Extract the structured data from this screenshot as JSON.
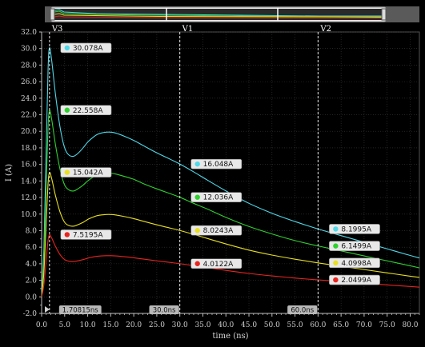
{
  "colors": {
    "background": "#000000",
    "grid": "#3a3a3a",
    "axis": "#bfbfbf",
    "cursor_line": "#e8e8e8",
    "label_box": "#e8e8e8",
    "cursor_box": "#b8b8b8"
  },
  "overview_bar": {
    "handle_left_icon": "slider-handle-icon",
    "handle_right_icon": "slider-handle-icon"
  },
  "chart_data": {
    "type": "line",
    "xlabel": "time (ns)",
    "ylabel": "I (A)",
    "xlim": [
      0,
      82
    ],
    "ylim": [
      -2.0,
      32.0
    ],
    "x_ticks": [
      "0.0",
      "5.0",
      "10.0",
      "15.0",
      "20.0",
      "25.0",
      "30.0",
      "35.0",
      "40.0",
      "45.0",
      "50.0",
      "55.0",
      "60.0",
      "65.0",
      "70.0",
      "75.0",
      "80.0"
    ],
    "y_ticks": [
      "-2.0",
      "0.0",
      "2.0",
      "4.0",
      "6.0",
      "8.0",
      "10.0",
      "12.0",
      "14.0",
      "16.0",
      "18.0",
      "20.0",
      "22.0",
      "24.0",
      "26.0",
      "28.0",
      "30.0",
      "32.0"
    ],
    "grid": true,
    "series": [
      {
        "color": "#4fd8e8",
        "values_at_markers": [
          30.078,
          16.048,
          8.1995
        ],
        "x": [
          0,
          0.5,
          1.0,
          1.4,
          1.70815,
          2.2,
          3.0,
          4.0,
          5.0,
          6.0,
          7.0,
          8.0,
          9.0,
          10,
          11,
          12,
          13,
          14,
          15,
          16,
          18,
          20,
          22,
          25,
          28,
          30,
          33,
          36,
          40,
          45,
          50,
          55,
          60,
          65,
          70,
          75,
          80,
          82
        ],
        "values": [
          0,
          6,
          18,
          27.5,
          30.078,
          28.5,
          24.5,
          20.5,
          18.0,
          17.1,
          17.0,
          17.4,
          18.0,
          18.7,
          19.2,
          19.6,
          19.8,
          19.9,
          19.9,
          19.8,
          19.4,
          18.9,
          18.3,
          17.4,
          16.6,
          16.048,
          15.1,
          14.1,
          12.8,
          11.3,
          10.1,
          9.1,
          8.1995,
          7.4,
          6.6,
          5.8,
          5.0,
          4.7
        ]
      },
      {
        "color": "#2fd12f",
        "values_at_markers": [
          22.558,
          12.036,
          6.1499
        ],
        "x": [
          0,
          0.5,
          1.0,
          1.4,
          1.70815,
          2.2,
          3.0,
          4.0,
          5.0,
          6.0,
          7.0,
          8.0,
          9.0,
          10,
          11,
          12,
          13,
          14,
          15,
          16,
          18,
          20,
          22,
          25,
          28,
          30,
          33,
          36,
          40,
          45,
          50,
          55,
          60,
          65,
          70,
          75,
          80,
          82
        ],
        "values": [
          0,
          4.5,
          13.5,
          20.6,
          22.558,
          21.4,
          18.4,
          15.4,
          13.5,
          12.9,
          12.8,
          13.1,
          13.5,
          14.0,
          14.4,
          14.7,
          14.85,
          14.93,
          14.93,
          14.85,
          14.55,
          14.2,
          13.7,
          13.05,
          12.45,
          12.036,
          11.3,
          10.6,
          9.6,
          8.5,
          7.6,
          6.8,
          6.1499,
          5.55,
          4.95,
          4.35,
          3.75,
          3.5
        ]
      },
      {
        "color": "#e8e020",
        "values_at_markers": [
          15.042,
          8.0243,
          4.0998
        ],
        "x": [
          0,
          0.5,
          1.0,
          1.4,
          1.70815,
          2.2,
          3.0,
          4.0,
          5.0,
          6.0,
          7.0,
          8.0,
          9.0,
          10,
          11,
          12,
          13,
          14,
          15,
          16,
          18,
          20,
          22,
          25,
          28,
          30,
          33,
          36,
          40,
          45,
          50,
          55,
          60,
          65,
          70,
          75,
          80,
          82
        ],
        "values": [
          0,
          3,
          9,
          13.7,
          15.042,
          14.25,
          12.25,
          10.25,
          9.0,
          8.6,
          8.55,
          8.75,
          9.0,
          9.35,
          9.6,
          9.8,
          9.9,
          9.95,
          9.95,
          9.9,
          9.7,
          9.45,
          9.15,
          8.7,
          8.3,
          8.0243,
          7.55,
          7.05,
          6.4,
          5.65,
          5.05,
          4.55,
          4.0998,
          3.7,
          3.3,
          2.9,
          2.5,
          2.35
        ]
      },
      {
        "color": "#e8241e",
        "values_at_markers": [
          7.5195,
          4.0122,
          2.0499
        ],
        "x": [
          0,
          0.5,
          1.0,
          1.4,
          1.70815,
          2.2,
          3.0,
          4.0,
          5.0,
          6.0,
          7.0,
          8.0,
          9.0,
          10,
          11,
          12,
          13,
          14,
          15,
          16,
          18,
          20,
          22,
          25,
          28,
          30,
          33,
          36,
          40,
          45,
          50,
          55,
          60,
          65,
          70,
          75,
          80,
          82
        ],
        "values": [
          0,
          1.5,
          4.5,
          6.85,
          7.5195,
          7.1,
          6.1,
          5.1,
          4.5,
          4.3,
          4.27,
          4.37,
          4.5,
          4.67,
          4.8,
          4.9,
          4.95,
          4.97,
          4.97,
          4.95,
          4.85,
          4.72,
          4.57,
          4.35,
          4.15,
          4.0122,
          3.77,
          3.53,
          3.2,
          2.83,
          2.53,
          2.27,
          2.0499,
          1.85,
          1.65,
          1.45,
          1.25,
          1.17
        ]
      }
    ],
    "cursors": [
      {
        "name": "V3",
        "x": 1.70815,
        "label": "1.70815ns",
        "values": [
          "30.078A",
          "22.558A",
          "15.042A",
          "7.5195A"
        ]
      },
      {
        "name": "V1",
        "x": 30.0,
        "label": "30.0ns",
        "values": [
          "16.048A",
          "12.036A",
          "8.0243A",
          "4.0122A"
        ]
      },
      {
        "name": "V2",
        "x": 60.0,
        "label": "60.0ns",
        "values": [
          "8.1995A",
          "6.1499A",
          "4.0998A",
          "2.0499A"
        ]
      }
    ]
  }
}
